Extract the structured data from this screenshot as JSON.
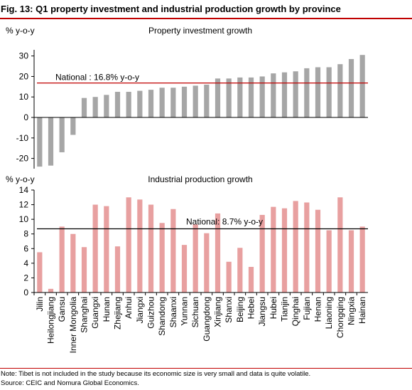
{
  "figure": {
    "title": "Fig. 13: Q1 property investment and industrial production growth by province",
    "note": "Note: Tibet is not included in the study because its economic size is very small and data is quite volatile.",
    "source": "Source: CEIC and Nomura Global Economics."
  },
  "colors": {
    "accent": "#c00000",
    "property_bar": "#a6a6a6",
    "ip_bar": "#e8a0a0",
    "ip_line": "#000000",
    "property_line": "#c00000"
  },
  "chart_data": [
    {
      "type": "bar",
      "title": "Property investment growth",
      "ylabel": "% y-o-y",
      "ylim": [
        -25,
        33
      ],
      "yticks": [
        -20,
        -10,
        0,
        10,
        20,
        30
      ],
      "grid": false,
      "categories": [
        "Jilin",
        "Heilongjiang",
        "Gansu",
        "Inner Mongolia",
        "Shanghai",
        "Guangxi",
        "Hunan",
        "Zhejiang",
        "Anhui",
        "Jiangxi",
        "Guizhou",
        "Shandong",
        "Shaanxi",
        "Yunnan",
        "Sichuan",
        "Guangdong",
        "Xinjiang",
        "Shanxi",
        "Beijing",
        "Hebei",
        "Jiangsu",
        "Hubei",
        "Tianjin",
        "Qinghai",
        "Fujian",
        "Henan",
        "Liaoning",
        "Chongqing",
        "Ningxia",
        "Hainan"
      ],
      "values": [
        -24,
        -23.5,
        -17,
        -8.5,
        9.5,
        10,
        11,
        12.5,
        12.5,
        13,
        13.5,
        14.5,
        14.5,
        15,
        15.5,
        16,
        19,
        19,
        19.5,
        19.5,
        20,
        21.5,
        22,
        22.5,
        24,
        24.5,
        24.5,
        26,
        28.5,
        30.5
      ],
      "reference_line": {
        "value": 16.8,
        "label": "National : 16.8% y-o-y"
      }
    },
    {
      "type": "bar",
      "title": "Industrial production growth",
      "ylabel": "% y-o-y",
      "ylim": [
        0,
        14
      ],
      "yticks": [
        0,
        2,
        4,
        6,
        8,
        10,
        12,
        14
      ],
      "grid": false,
      "categories": [
        "Jilin",
        "Heilongjiang",
        "Gansu",
        "Inner Mongolia",
        "Shanghai",
        "Guangxi",
        "Hunan",
        "Zhejiang",
        "Anhui",
        "Jiangxi",
        "Guizhou",
        "Shandong",
        "Shaanxi",
        "Yunnan",
        "Sichuan",
        "Guangdong",
        "Xinjiang",
        "Shanxi",
        "Beijing",
        "Hebei",
        "Jiangsu",
        "Hubei",
        "Tianjin",
        "Qinghai",
        "Fujian",
        "Henan",
        "Liaoning",
        "Chongqing",
        "Ningxia",
        "Hainan"
      ],
      "values": [
        5.5,
        0.5,
        9,
        8,
        6.2,
        12,
        11.8,
        6.3,
        13,
        12.7,
        12,
        9.5,
        11.4,
        6.5,
        9.3,
        8.1,
        10.8,
        4.2,
        6.1,
        3.5,
        10.6,
        11.7,
        11.5,
        12.5,
        12.3,
        11.3,
        8.5,
        13,
        8.5,
        9
      ],
      "reference_line": {
        "value": 8.7,
        "label": "National: 8.7% y-o-y"
      }
    }
  ]
}
